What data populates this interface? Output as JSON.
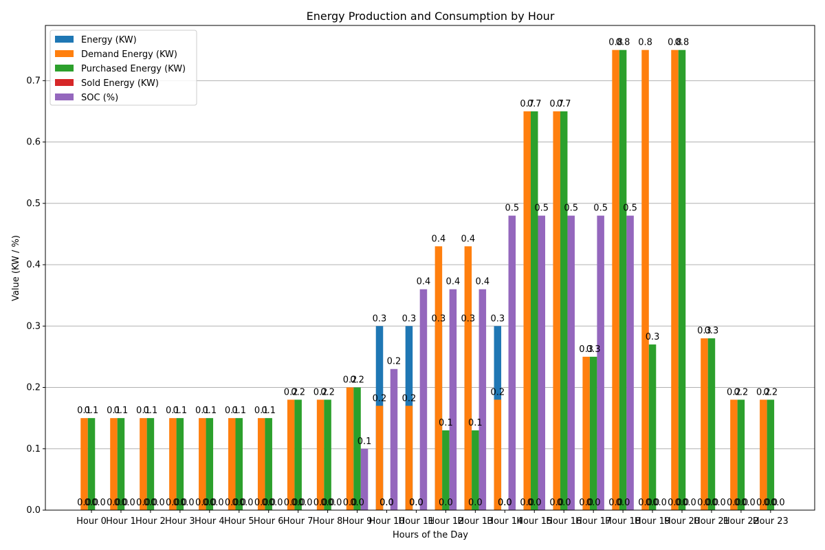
{
  "chart_data": {
    "type": "bar",
    "title": "Energy Production and Consumption by Hour",
    "xlabel": "Hours of the Day",
    "ylabel": "Value (KW / %)",
    "ylim": [
      0,
      0.79
    ],
    "yticks": [
      "0.0",
      "0.1",
      "0.2",
      "0.3",
      "0.4",
      "0.5",
      "0.6",
      "0.7"
    ],
    "grid": "horizontal",
    "legend_position": "top-left",
    "categories": [
      "Hour 0",
      "Hour 1",
      "Hour 2",
      "Hour 3",
      "Hour 4",
      "Hour 5",
      "Hour 6",
      "Hour 7",
      "Hour 8",
      "Hour 9",
      "Hour 10",
      "Hour 11",
      "Hour 12",
      "Hour 13",
      "Hour 14",
      "Hour 15",
      "Hour 16",
      "Hour 17",
      "Hour 18",
      "Hour 19",
      "Hour 20",
      "Hour 21",
      "Hour 22",
      "Hour 23"
    ],
    "series": [
      {
        "name": "Energy (KW)",
        "color": "#1f77b4",
        "values": [
          0,
          0,
          0,
          0,
          0,
          0,
          0,
          0,
          0,
          0,
          0.3,
          0.3,
          0.3,
          0.3,
          0.3,
          0,
          0,
          0,
          0,
          0,
          0,
          0,
          0,
          0
        ]
      },
      {
        "name": "Demand Energy (KW)",
        "color": "#ff7f0e",
        "values": [
          0.15,
          0.15,
          0.15,
          0.15,
          0.15,
          0.15,
          0.15,
          0.18,
          0.18,
          0.2,
          0.17,
          0.17,
          0.43,
          0.43,
          0.18,
          0.65,
          0.65,
          0.25,
          0.75,
          0.75,
          0.75,
          0.28,
          0.18,
          0.18
        ]
      },
      {
        "name": "Purchased Energy (KW)",
        "color": "#2ca02c",
        "values": [
          0.15,
          0.15,
          0.15,
          0.15,
          0.15,
          0.15,
          0.15,
          0.18,
          0.18,
          0.2,
          0,
          0,
          0.13,
          0.13,
          0,
          0.65,
          0.65,
          0.25,
          0.75,
          0.27,
          0.75,
          0.28,
          0.18,
          0.18
        ]
      },
      {
        "name": "Sold Energy (KW)",
        "color": "#d62728",
        "values": [
          0,
          0,
          0,
          0,
          0,
          0,
          0,
          0,
          0,
          0,
          0,
          0,
          0,
          0,
          0,
          0,
          0,
          0,
          0,
          0,
          0,
          0,
          0,
          0
        ]
      },
      {
        "name": "SOC (%)",
        "color": "#9467bd",
        "values": [
          0,
          0,
          0,
          0,
          0,
          0,
          0,
          0,
          0,
          0.1,
          0.23,
          0.36,
          0.36,
          0.36,
          0.48,
          0.48,
          0.48,
          0.48,
          0.48,
          0,
          0,
          0,
          0,
          0
        ]
      }
    ]
  }
}
